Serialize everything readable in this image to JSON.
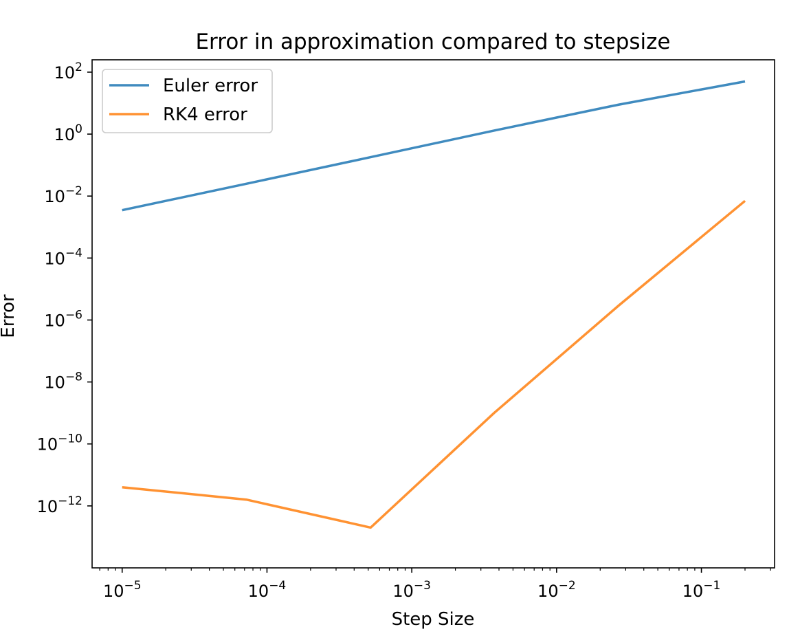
{
  "chart_data": {
    "type": "line",
    "title": "Error in approximation compared to stepsize",
    "xlabel": "Step Size",
    "ylabel": "Error",
    "xscale": "log",
    "yscale": "log",
    "xlim": [
      6.2e-06,
      0.32
    ],
    "ylim": [
      1e-14,
      250.0
    ],
    "x_ticks": [
      {
        "value": 1e-05,
        "base": "10",
        "exp": "−5"
      },
      {
        "value": 0.0001,
        "base": "10",
        "exp": "−4"
      },
      {
        "value": 0.001,
        "base": "10",
        "exp": "−3"
      },
      {
        "value": 0.01,
        "base": "10",
        "exp": "−2"
      },
      {
        "value": 0.1,
        "base": "10",
        "exp": "−1"
      }
    ],
    "y_ticks": [
      {
        "value": 100.0,
        "base": "10",
        "exp": "2"
      },
      {
        "value": 1.0,
        "base": "10",
        "exp": "0"
      },
      {
        "value": 0.01,
        "base": "10",
        "exp": "−2"
      },
      {
        "value": 0.0001,
        "base": "10",
        "exp": "−4"
      },
      {
        "value": 1e-06,
        "base": "10",
        "exp": "−6"
      },
      {
        "value": 1e-08,
        "base": "10",
        "exp": "−8"
      },
      {
        "value": 1e-10,
        "base": "10",
        "exp": "−10"
      },
      {
        "value": 1e-12,
        "base": "10",
        "exp": "−12"
      }
    ],
    "grid": false,
    "legend": "top-left",
    "series": [
      {
        "name": "Euler error",
        "color": "#1f77b4",
        "x": [
          1e-05,
          7.2e-05,
          0.00052,
          0.0037,
          0.027,
          0.2
        ],
        "y": [
          0.0035,
          0.025,
          0.18,
          1.3,
          9.0,
          50
        ]
      },
      {
        "name": "RK4 error",
        "color": "#ff7f0e",
        "x": [
          1e-05,
          7.2e-05,
          0.00052,
          0.0037,
          0.027,
          0.2
        ],
        "y": [
          4e-12,
          1.6e-12,
          2e-13,
          1e-09,
          3e-06,
          0.007
        ]
      }
    ]
  }
}
